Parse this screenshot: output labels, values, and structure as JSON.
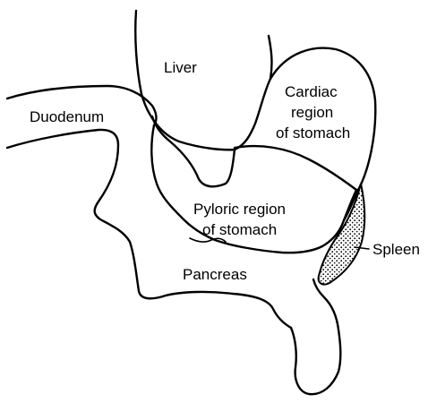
{
  "labels": {
    "liver": "Liver",
    "duodenum": "Duodenum",
    "cardiac_line1": "Cardiac",
    "cardiac_line2": "region",
    "cardiac_line3": "of stomach",
    "pyloric_line1": "Pyloric region",
    "pyloric_line2": "of stomach",
    "pancreas": "Pancreas",
    "spleen": "Spleen"
  },
  "colors": {
    "ink": "#000000",
    "background": "#ffffff"
  }
}
